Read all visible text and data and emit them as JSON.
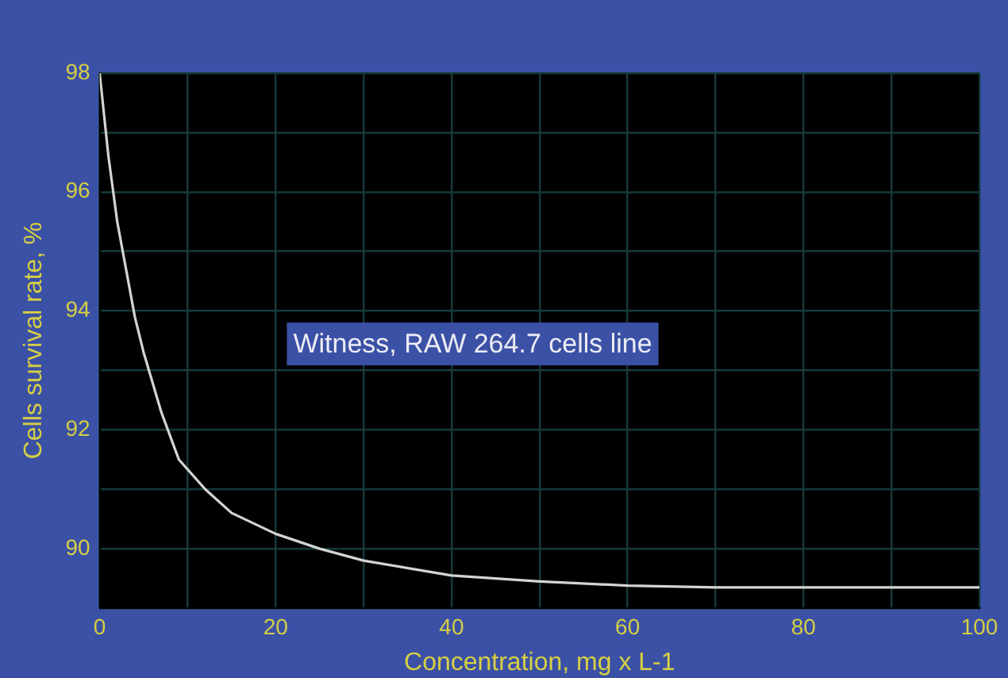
{
  "chart_data": {
    "type": "line",
    "xlabel": "Concentration, mg x L-1",
    "ylabel": "Cells survival rate, %",
    "x": [
      0,
      0.5,
      1,
      2,
      3,
      4,
      5,
      7,
      9,
      12,
      15,
      20,
      25,
      30,
      40,
      50,
      60,
      70,
      80,
      100
    ],
    "series": [
      {
        "name": "Witness, RAW 264.7 cells line",
        "color": "#d4d4d4",
        "values": [
          98,
          97.3,
          96.6,
          95.5,
          94.7,
          93.9,
          93.3,
          92.3,
          91.5,
          91.0,
          90.6,
          90.25,
          90.0,
          89.8,
          89.55,
          89.45,
          89.38,
          89.35,
          89.35,
          89.35
        ]
      }
    ],
    "xlim": [
      0,
      100
    ],
    "xticks": [
      0,
      {
        "value": 10,
        "label": null
      },
      20,
      {
        "value": 30,
        "label": null
      },
      40,
      {
        "value": 50,
        "label": null
      },
      60,
      {
        "value": 70,
        "label": null
      },
      80,
      {
        "value": 90,
        "label": null
      },
      100
    ],
    "ylim": [
      89,
      98
    ],
    "yticks": [
      {
        "value": 89,
        "label": null
      },
      90,
      {
        "value": 91,
        "label": null
      },
      92,
      {
        "value": 93,
        "label": null
      },
      94,
      {
        "value": 95,
        "label": null
      },
      96,
      {
        "value": 97,
        "label": null
      },
      98
    ],
    "grid": true,
    "marker": "none",
    "line_style": "solid",
    "legend": false
  }
}
